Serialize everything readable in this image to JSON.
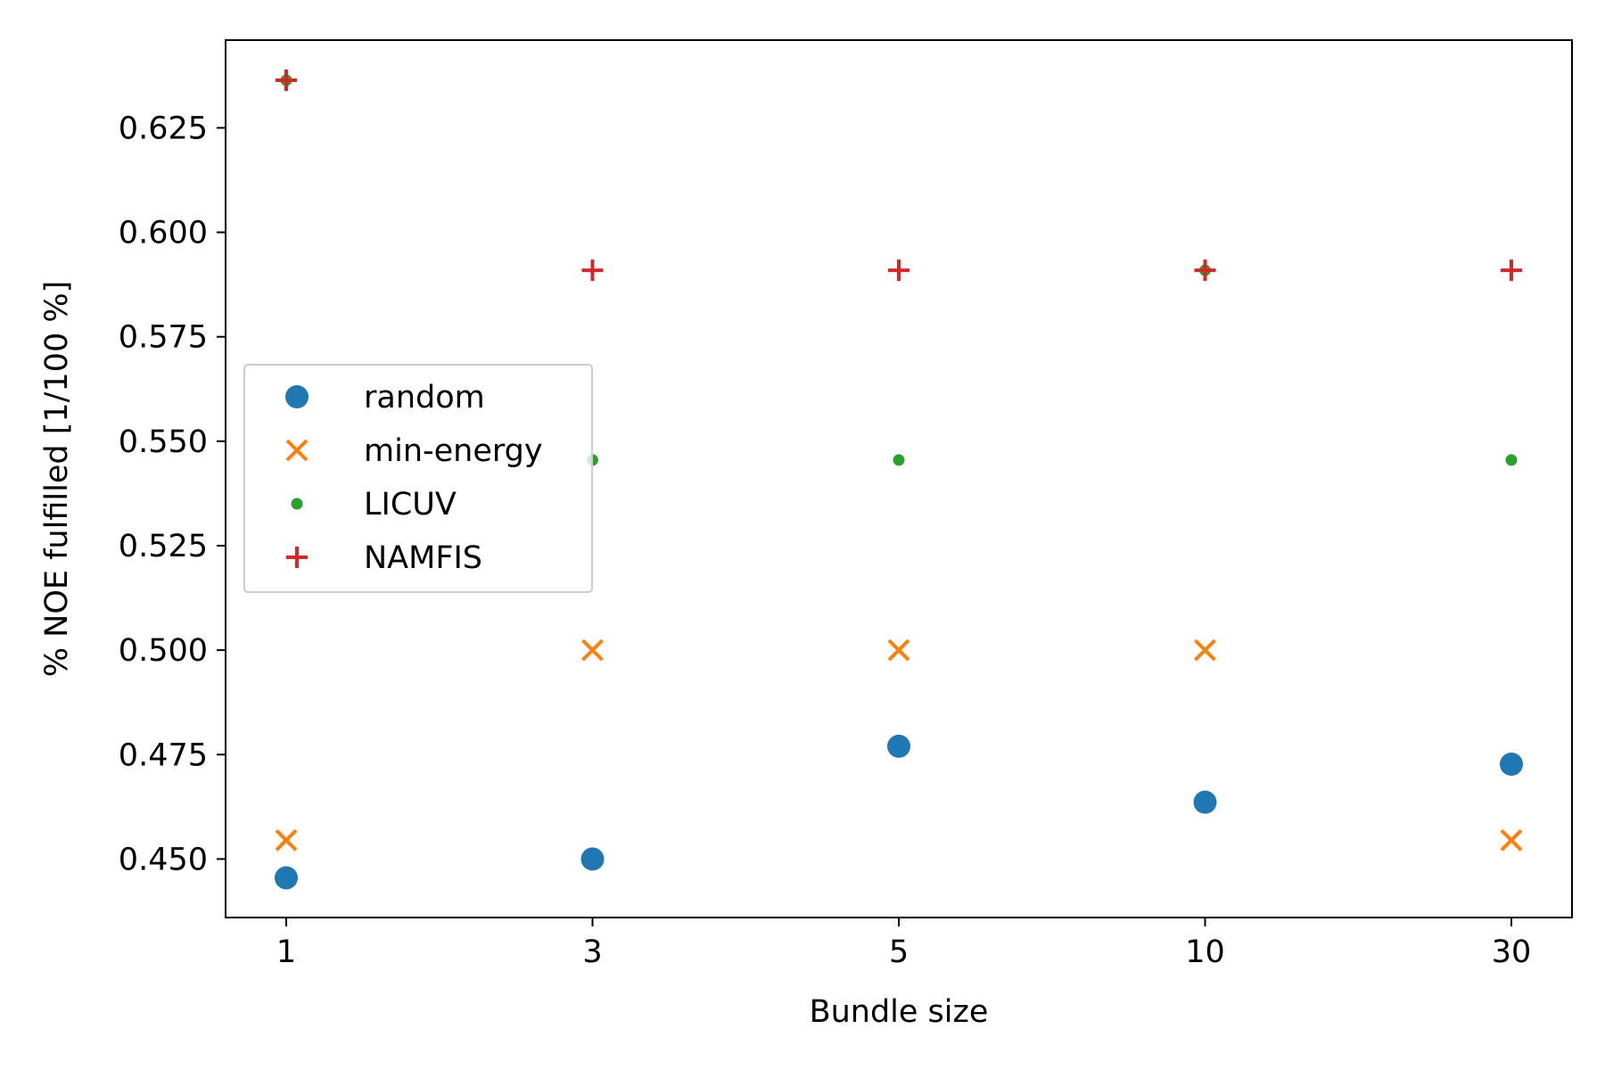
{
  "chart_data": {
    "type": "scatter",
    "title": "",
    "xlabel": "Bundle size",
    "ylabel": "% NOE fulfilled [1/100 %]",
    "categories": [
      "1",
      "3",
      "5",
      "10",
      "30"
    ],
    "yticks": [
      "0.450",
      "0.475",
      "0.500",
      "0.525",
      "0.550",
      "0.575",
      "0.600",
      "0.625"
    ],
    "ylim": [
      0.436,
      0.646
    ],
    "grid": false,
    "legend_position": "center-left",
    "series": [
      {
        "name": "random",
        "marker": "circle",
        "color": "#1f77b4",
        "values": [
          0.4455,
          0.45,
          0.477,
          0.4636,
          0.4727
        ]
      },
      {
        "name": "min-energy",
        "marker": "x",
        "color": "#ff7f0e",
        "values": [
          0.4545,
          0.5,
          0.5,
          0.5,
          0.4545
        ]
      },
      {
        "name": "LICUV",
        "marker": "dot",
        "color": "#2ca02c",
        "values": [
          0.6364,
          0.5455,
          0.5455,
          0.5909,
          0.5455
        ]
      },
      {
        "name": "NAMFIS",
        "marker": "plus",
        "color": "#d62728",
        "values": [
          0.6364,
          0.5909,
          0.5909,
          0.5909,
          0.5909
        ]
      }
    ]
  }
}
